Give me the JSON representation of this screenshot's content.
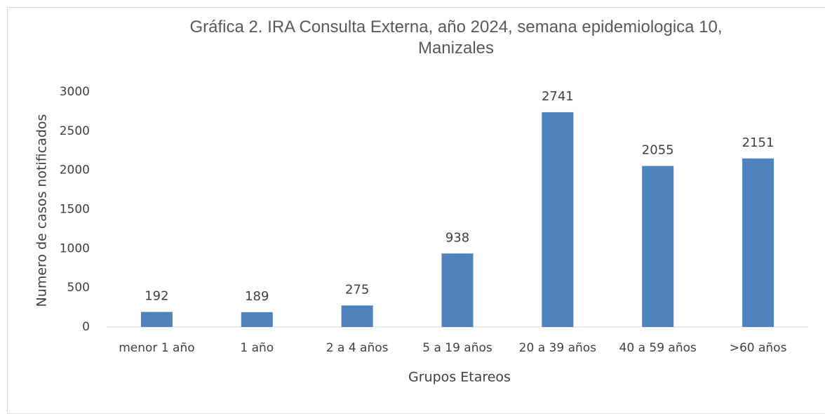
{
  "chart_data": {
    "type": "bar",
    "title": "Gráfica 2. IRA Consulta Externa, año 2024, semana epidemiologica 10, Manizales",
    "x_label": "Grupos Etareos",
    "y_label": "Numero de casos notificados",
    "categories": [
      "menor 1 año",
      "1 año",
      "2 a 4 años",
      "5 a 19 años",
      "20 a 39 años",
      "40 a 59 años",
      ">60 años"
    ],
    "values": [
      192,
      189,
      275,
      938,
      2741,
      2055,
      2151
    ],
    "color": "#4f81bd",
    "ylim": [
      0,
      3000
    ],
    "yticks": [
      0,
      500,
      1000,
      1500,
      2000,
      2500,
      3000
    ],
    "grid": false
  }
}
